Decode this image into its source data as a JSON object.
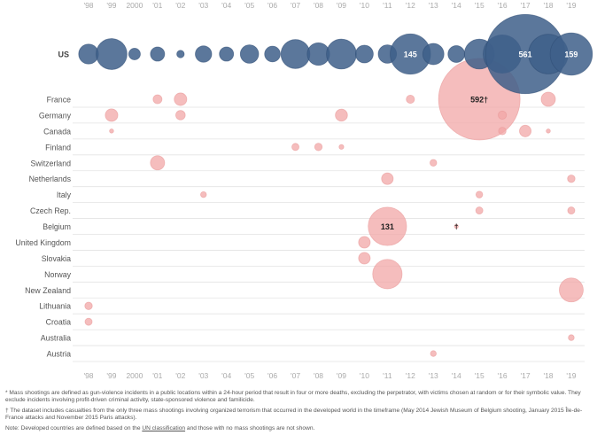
{
  "chart_data": {
    "type": "bubble",
    "years": [
      "'98",
      "'99",
      "2000",
      "'01",
      "'02",
      "'03",
      "'04",
      "'05",
      "'06",
      "'07",
      "'08",
      "'09",
      "'10",
      "'11",
      "'12",
      "'13",
      "'14",
      "'15",
      "'16",
      "'17",
      "'18",
      "'19"
    ],
    "countries": [
      "US",
      "France",
      "Germany",
      "Canada",
      "Finland",
      "Switzerland",
      "Netherlands",
      "Italy",
      "Czech Rep.",
      "Belgium",
      "United Kingdom",
      "Slovakia",
      "Norway",
      "New Zealand",
      "Lithuania",
      "Croatia",
      "Australia",
      "Austria"
    ],
    "colors": {
      "us": "#3e5f8a",
      "other": "#f2a7a7",
      "grid": "#e3e3e3",
      "label": "#555555",
      "axis": "#aaaaaa"
    },
    "points": [
      {
        "country": "US",
        "year": "'98",
        "value": 35
      },
      {
        "country": "US",
        "year": "'99",
        "value": 85
      },
      {
        "country": "US",
        "year": "2000",
        "value": 12
      },
      {
        "country": "US",
        "year": "'01",
        "value": 18
      },
      {
        "country": "US",
        "year": "'02",
        "value": 5
      },
      {
        "country": "US",
        "year": "'03",
        "value": 24
      },
      {
        "country": "US",
        "year": "'04",
        "value": 18
      },
      {
        "country": "US",
        "year": "'05",
        "value": 30
      },
      {
        "country": "US",
        "year": "'06",
        "value": 22
      },
      {
        "country": "US",
        "year": "'07",
        "value": 75
      },
      {
        "country": "US",
        "year": "'08",
        "value": 45
      },
      {
        "country": "US",
        "year": "'09",
        "value": 80
      },
      {
        "country": "US",
        "year": "'10",
        "value": 28
      },
      {
        "country": "US",
        "year": "'11",
        "value": 30
      },
      {
        "country": "US",
        "year": "'12",
        "value": 145,
        "label": "145"
      },
      {
        "country": "US",
        "year": "'13",
        "value": 40
      },
      {
        "country": "US",
        "year": "'14",
        "value": 25
      },
      {
        "country": "US",
        "year": "'15",
        "value": 80
      },
      {
        "country": "US",
        "year": "'16",
        "value": 130
      },
      {
        "country": "US",
        "year": "'17",
        "value": 561,
        "label": "561"
      },
      {
        "country": "US",
        "year": "'18",
        "value": 140
      },
      {
        "country": "US",
        "year": "'19",
        "value": 159,
        "label": "159"
      },
      {
        "country": "France",
        "year": "'01",
        "value": 7
      },
      {
        "country": "France",
        "year": "'02",
        "value": 14
      },
      {
        "country": "France",
        "year": "'12",
        "value": 6
      },
      {
        "country": "France",
        "year": "'15",
        "value": 592,
        "label": "592†"
      },
      {
        "country": "France",
        "year": "'18",
        "value": 18
      },
      {
        "country": "Germany",
        "year": "'99",
        "value": 14
      },
      {
        "country": "Germany",
        "year": "'02",
        "value": 8
      },
      {
        "country": "Germany",
        "year": "'09",
        "value": 13
      },
      {
        "country": "Germany",
        "year": "'16",
        "value": 6
      },
      {
        "country": "Canada",
        "year": "'99",
        "value": 1.5
      },
      {
        "country": "Canada",
        "year": "'16",
        "value": 5
      },
      {
        "country": "Canada",
        "year": "'17",
        "value": 12
      },
      {
        "country": "Canada",
        "year": "'18",
        "value": 1.5
      },
      {
        "country": "Finland",
        "year": "'07",
        "value": 4.5
      },
      {
        "country": "Finland",
        "year": "'08",
        "value": 5
      },
      {
        "country": "Finland",
        "year": "'09",
        "value": 2
      },
      {
        "country": "Switzerland",
        "year": "'01",
        "value": 18
      },
      {
        "country": "Switzerland",
        "year": "'13",
        "value": 4
      },
      {
        "country": "Netherlands",
        "year": "'11",
        "value": 12
      },
      {
        "country": "Netherlands",
        "year": "'19",
        "value": 5
      },
      {
        "country": "Italy",
        "year": "'03",
        "value": 3
      },
      {
        "country": "Italy",
        "year": "'15",
        "value": 4
      },
      {
        "country": "Czech Rep.",
        "year": "'15",
        "value": 4.5
      },
      {
        "country": "Czech Rep.",
        "year": "'19",
        "value": 4.5
      },
      {
        "country": "Belgium",
        "year": "'11",
        "value": 131,
        "label": "131"
      },
      {
        "country": "Belgium",
        "year": "'14",
        "value": 1,
        "label": "†"
      },
      {
        "country": "United Kingdom",
        "year": "'10",
        "value": 12
      },
      {
        "country": "Slovakia",
        "year": "'10",
        "value": 12
      },
      {
        "country": "Norway",
        "year": "'11",
        "value": 77
      },
      {
        "country": "New Zealand",
        "year": "'19",
        "value": 51
      },
      {
        "country": "Lithuania",
        "year": "'98",
        "value": 5
      },
      {
        "country": "Croatia",
        "year": "'98",
        "value": 4.5
      },
      {
        "country": "Australia",
        "year": "'19",
        "value": 3
      },
      {
        "country": "Austria",
        "year": "'13",
        "value": 3
      }
    ]
  },
  "notes": {
    "note1": "* Mass shootings are defined as gun-violence incidents in a public locations within a 24-hour period that result in four or more deaths, excluding the perpetrator, with victims chosen at random or for their symbolic value. They exclude incidents involving profit-driven criminal activity, state-sponsored violence and familicide.",
    "note2": "† The dataset includes casualties from the only three mass shootings involving organized terrorism that occurred in the developed world in the timeframe (May 2014 Jewish Museum of Belgium shooting, January 2015 Île-de-France attacks and November 2015 Paris attacks).",
    "note3_before": "Note: Developed countries are defined based on the ",
    "note3_link": "UN classification",
    "note3_after": " and those with no mass shootings are not shown."
  }
}
